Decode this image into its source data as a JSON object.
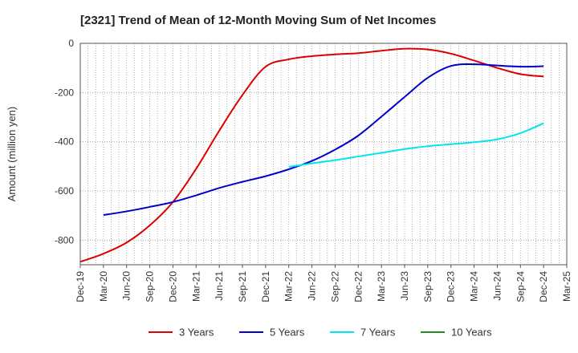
{
  "chart_data": {
    "type": "line",
    "title": "[2321]  Trend of Mean of 12-Month Moving Sum of Net Incomes",
    "ylabel": "Amount (million yen)",
    "xlabel": "",
    "ylim": [
      -900,
      0
    ],
    "yticks": [
      0,
      -200,
      -400,
      -600,
      -800
    ],
    "x_tick_labels": [
      "Dec-19",
      "Mar-20",
      "Jun-20",
      "Sep-20",
      "Dec-20",
      "Mar-21",
      "Jun-21",
      "Sep-21",
      "Dec-21",
      "Mar-22",
      "Jun-22",
      "Sep-22",
      "Dec-22",
      "Mar-23",
      "Jun-23",
      "Sep-23",
      "Dec-23",
      "Mar-24",
      "Jun-24",
      "Sep-24",
      "Dec-24",
      "Mar-25"
    ],
    "grid": true,
    "legend_position": "bottom",
    "series": [
      {
        "name": "3 Years",
        "color": "#dd0000",
        "points": [
          [
            "Dec-19",
            -888
          ],
          [
            "Mar-20",
            -855
          ],
          [
            "Jun-20",
            -810
          ],
          [
            "Sep-20",
            -740
          ],
          [
            "Dec-20",
            -645
          ],
          [
            "Mar-21",
            -510
          ],
          [
            "Jun-21",
            -355
          ],
          [
            "Sep-21",
            -210
          ],
          [
            "Dec-21",
            -95
          ],
          [
            "Mar-22",
            -65
          ],
          [
            "Jun-22",
            -52
          ],
          [
            "Sep-22",
            -45
          ],
          [
            "Dec-22",
            -40
          ],
          [
            "Mar-23",
            -30
          ],
          [
            "Jun-23",
            -22
          ],
          [
            "Sep-23",
            -25
          ],
          [
            "Dec-23",
            -42
          ],
          [
            "Mar-24",
            -70
          ],
          [
            "Jun-24",
            -100
          ],
          [
            "Sep-24",
            -125
          ],
          [
            "Dec-24",
            -135
          ]
        ]
      },
      {
        "name": "5 Years",
        "color": "#0000cc",
        "points": [
          [
            "Mar-20",
            -698
          ],
          [
            "Jun-20",
            -683
          ],
          [
            "Sep-20",
            -665
          ],
          [
            "Dec-20",
            -645
          ],
          [
            "Mar-21",
            -618
          ],
          [
            "Jun-21",
            -588
          ],
          [
            "Sep-21",
            -563
          ],
          [
            "Dec-21",
            -540
          ],
          [
            "Mar-22",
            -512
          ],
          [
            "Jun-22",
            -478
          ],
          [
            "Sep-22",
            -432
          ],
          [
            "Dec-22",
            -375
          ],
          [
            "Mar-23",
            -298
          ],
          [
            "Jun-23",
            -218
          ],
          [
            "Sep-23",
            -140
          ],
          [
            "Dec-23",
            -92
          ],
          [
            "Mar-24",
            -85
          ],
          [
            "Jun-24",
            -90
          ],
          [
            "Sep-24",
            -95
          ],
          [
            "Dec-24",
            -93
          ]
        ]
      },
      {
        "name": "7 Years",
        "color": "#00e5ee",
        "points": [
          [
            "Mar-22",
            -502
          ],
          [
            "Jun-22",
            -488
          ],
          [
            "Sep-22",
            -475
          ],
          [
            "Dec-22",
            -460
          ],
          [
            "Mar-23",
            -445
          ],
          [
            "Jun-23",
            -430
          ],
          [
            "Sep-23",
            -418
          ],
          [
            "Dec-23",
            -410
          ],
          [
            "Mar-24",
            -402
          ],
          [
            "Jun-24",
            -390
          ],
          [
            "Sep-24",
            -365
          ],
          [
            "Dec-24",
            -325
          ]
        ]
      },
      {
        "name": "10 Years",
        "color": "#228b22",
        "points": []
      }
    ]
  }
}
